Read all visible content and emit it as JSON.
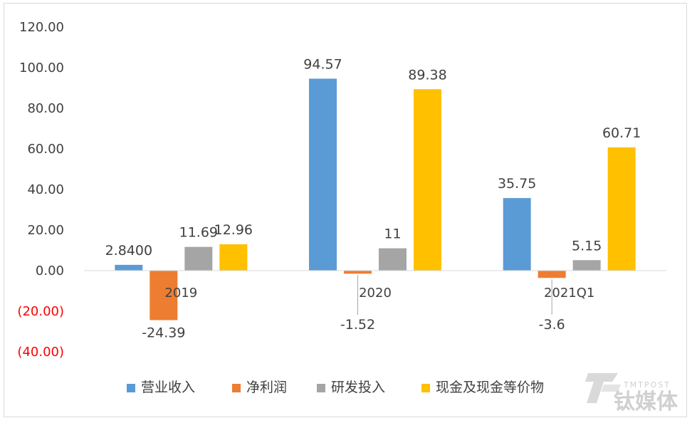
{
  "chart_data": {
    "type": "bar",
    "categories": [
      "2019",
      "2020",
      "2021Q1"
    ],
    "series": [
      {
        "name": "营业收入",
        "color": "#5b9bd5",
        "values": [
          2.84,
          94.57,
          35.75
        ],
        "labels": [
          "2.8400",
          "94.57",
          "35.75"
        ]
      },
      {
        "name": "净利润",
        "color": "#ed7d31",
        "values": [
          -24.39,
          -1.52,
          -3.6
        ],
        "labels": [
          "-24.39",
          "-1.52",
          "-3.6"
        ]
      },
      {
        "name": "研发投入",
        "color": "#a5a5a5",
        "values": [
          11.69,
          11,
          5.15
        ],
        "labels": [
          "11.69",
          "11",
          "5.15"
        ]
      },
      {
        "name": "现金及现金等价物",
        "color": "#ffc000",
        "values": [
          12.96,
          89.38,
          60.71
        ],
        "labels": [
          "12.96",
          "89.38",
          "60.71"
        ]
      }
    ],
    "ylim": [
      -40,
      120
    ],
    "yticks": [
      120,
      100,
      80,
      60,
      40,
      20,
      0,
      -20,
      -40
    ],
    "ytick_labels": [
      "120.00",
      "100.00",
      "80.00",
      "60.00",
      "40.00",
      "20.00",
      "0.00",
      "(20.00)",
      "(40.00)"
    ],
    "negative_tick_color": "#ff0000",
    "grid": false,
    "legend_position": "bottom"
  },
  "watermark": {
    "logo_text": "钛媒体",
    "sub_text": "TMTPOST",
    "icon": "tmtpost-logo-icon"
  }
}
